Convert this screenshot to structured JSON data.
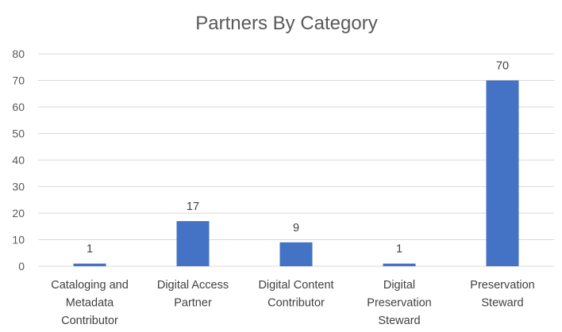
{
  "chart_data": {
    "type": "bar",
    "title": "Partners By Category",
    "xlabel": "",
    "ylabel": "",
    "categories": [
      [
        "Cataloging and",
        "Metadata",
        "Contributor"
      ],
      [
        "Digital Access",
        "Partner"
      ],
      [
        "Digital Content",
        "Contributor"
      ],
      [
        "Digital",
        "Preservation",
        "Steward"
      ],
      [
        "Preservation",
        "Steward"
      ]
    ],
    "values": [
      1,
      17,
      9,
      1,
      70
    ],
    "ylim": [
      0,
      80
    ],
    "yticks": [
      0,
      10,
      20,
      30,
      40,
      50,
      60,
      70,
      80
    ],
    "grid": true,
    "legend": "none",
    "bar_color": "#4472c4",
    "data_labels": true
  }
}
